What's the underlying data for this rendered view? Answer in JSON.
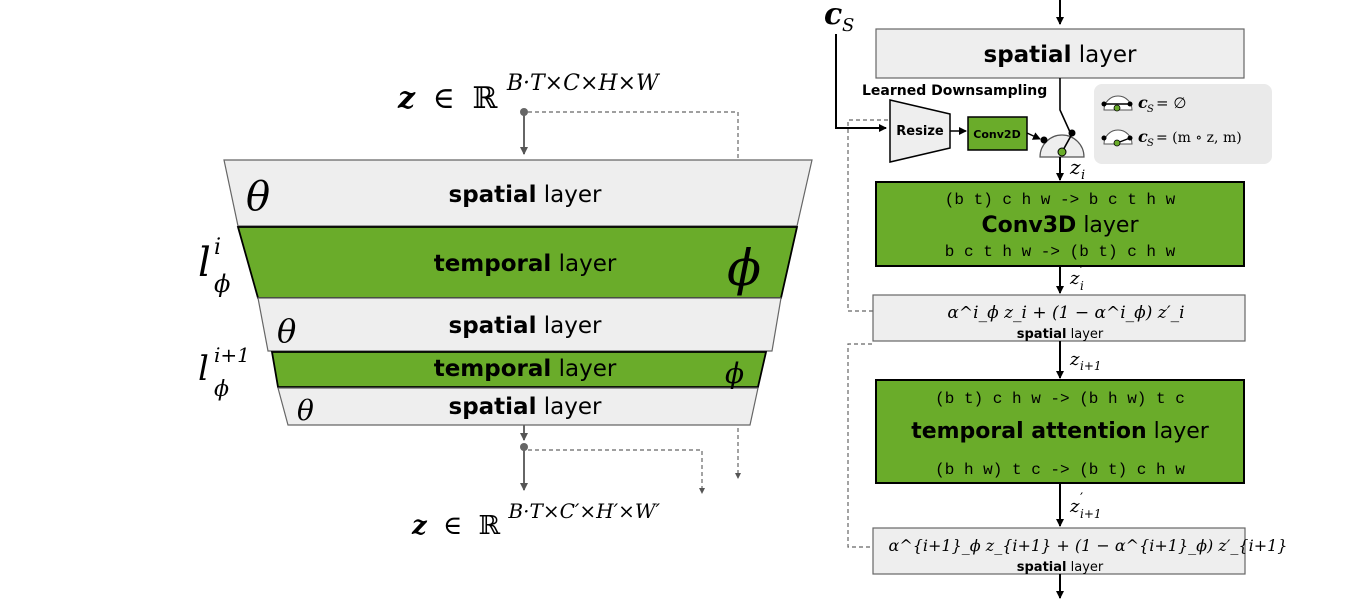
{
  "left": {
    "input_shape": {
      "z": "z",
      "in": "∈",
      "R": "ℝ",
      "dims": "B·T×C×H×W"
    },
    "output_shape": {
      "z": "z",
      "in": "∈",
      "R": "ℝ",
      "dims": "B·T×C′×H′×W′"
    },
    "layers": [
      {
        "bold": "spatial",
        "rest": " layer",
        "param": "θ"
      },
      {
        "bold": "temporal",
        "rest": " layer",
        "param": "ϕ"
      },
      {
        "bold": "spatial",
        "rest": " layer",
        "param": "θ"
      },
      {
        "bold": "temporal",
        "rest": " layer",
        "param": "ϕ"
      },
      {
        "bold": "spatial",
        "rest": " layer",
        "param": "θ"
      }
    ],
    "l1": {
      "base": "l",
      "sup": "i",
      "sub": "ϕ"
    },
    "l2": {
      "base": "l",
      "sup": "i+1",
      "sub": "ϕ"
    }
  },
  "right": {
    "cs_label": {
      "base": "c",
      "sub": "S"
    },
    "top_spatial": {
      "bold": "spatial",
      "rest": " layer"
    },
    "learned_downsampling": "Learned Downsampling",
    "resize": "Resize",
    "conv2d": "Conv2D",
    "legend": {
      "row1": {
        "c": "c",
        "sub": "S",
        "rest": " = ∅"
      },
      "row2": {
        "c": "c",
        "sub": "S",
        "rest": " = (m ∘ z, m)"
      }
    },
    "zi": {
      "base": "z",
      "sub": "i"
    },
    "conv3d_block": {
      "line1": "(b t) c h w -> b c t h w",
      "title_bold": "Conv3D",
      "title_rest": " layer",
      "line2": "b c t h w -> (b t) c h w"
    },
    "zi_prime": {
      "base": "z",
      "prime": "′",
      "sub": "i"
    },
    "mix1": {
      "formula": "α^i_ϕ z_i + (1 − α^i_ϕ) z′_i",
      "caption_bold": "spatial",
      "caption_rest": " layer"
    },
    "zi1": {
      "base": "z",
      "sub": "i+1"
    },
    "tattn_block": {
      "line1": "(b t) c h w -> (b h w) t c",
      "title_bold": "temporal attention",
      "title_rest": " layer",
      "line2": "(b h w) t c -> (b t) c h w"
    },
    "zi1_prime": {
      "base": "z",
      "prime": "′",
      "sub": "i+1"
    },
    "mix2": {
      "formula": "α^{i+1}_ϕ z_{i+1} + (1 − α^{i+1}_ϕ) z′_{i+1}",
      "caption_bold": "spatial",
      "caption_rest": " layer"
    }
  },
  "colors": {
    "green": "#6aac2a",
    "gray": "#eeeeee",
    "border": "#555555",
    "legend_bg": "#eaeaea"
  }
}
